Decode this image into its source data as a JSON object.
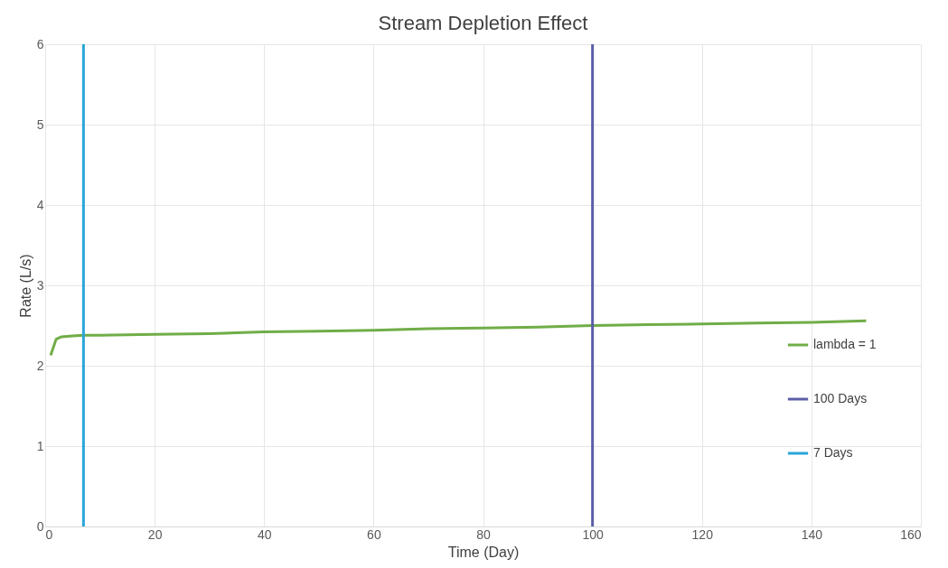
{
  "chart_data": {
    "type": "line",
    "title": "Stream Depletion Effect",
    "xlabel": "Time (Day)",
    "ylabel": "Rate (L/s)",
    "xlim": [
      0,
      160
    ],
    "xticks": [
      0,
      20,
      40,
      60,
      80,
      100,
      120,
      140,
      160
    ],
    "ylim": [
      0,
      6
    ],
    "yticks": [
      0,
      1,
      2,
      3,
      4,
      5,
      6
    ],
    "grid": true,
    "legend": "right",
    "marker": "none",
    "line_style": "solid",
    "series": [
      {
        "name": "lambda = 1",
        "color": "#70ad47",
        "x": [
          1,
          2,
          3,
          5,
          7,
          10,
          20,
          30,
          40,
          50,
          60,
          70,
          80,
          90,
          100,
          110,
          120,
          130,
          140,
          150
        ],
        "values": [
          2.13,
          2.33,
          2.36,
          2.37,
          2.38,
          2.38,
          2.39,
          2.4,
          2.42,
          2.43,
          2.44,
          2.46,
          2.47,
          2.48,
          2.5,
          2.51,
          2.52,
          2.53,
          2.54,
          2.56
        ]
      },
      {
        "name": "100 Days",
        "color": "#5b5fa8",
        "x": [
          100,
          100
        ],
        "values": [
          0,
          6
        ]
      },
      {
        "name": "7 Days",
        "color": "#2aa6d8",
        "x": [
          7,
          7
        ],
        "values": [
          0,
          6
        ]
      }
    ]
  }
}
